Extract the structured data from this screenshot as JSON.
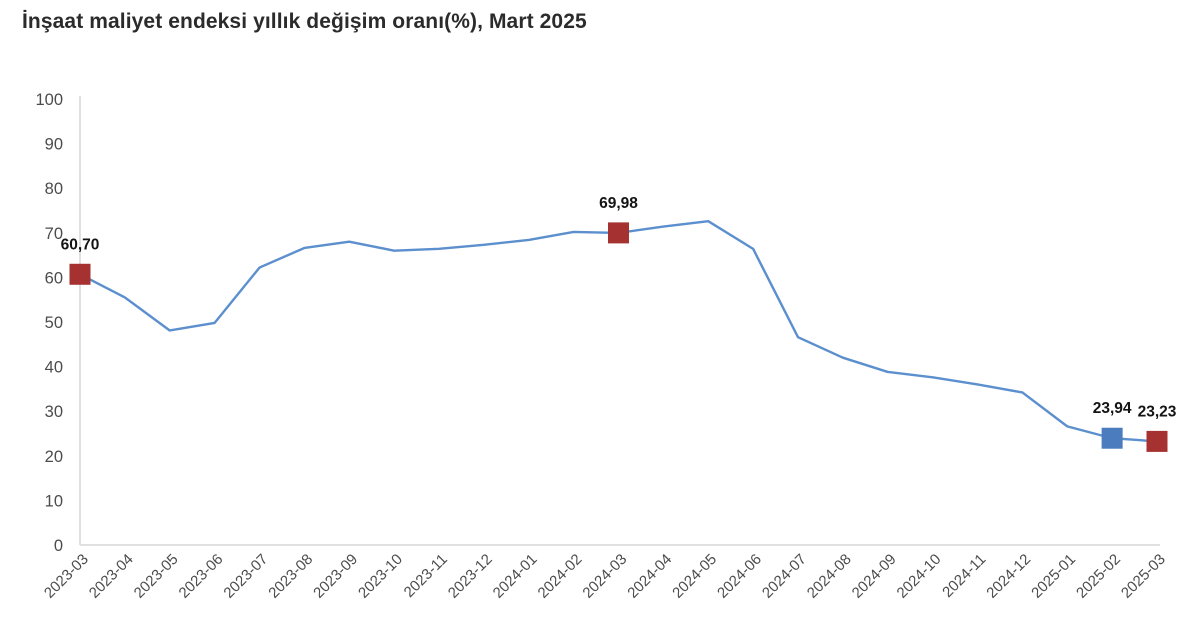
{
  "title": "İnşaat maliyet endeksi yıllık değişim oranı(%), Mart 2025",
  "colors": {
    "line": "#5b8fce",
    "marker_red": "#a53130",
    "marker_blue": "#4b7cbe",
    "title_text": "#2b2b2b",
    "axis_text": "#4c4c4c",
    "axis_line": "#d6d6d6",
    "point_label_text": "#141414"
  },
  "chart_data": {
    "type": "line",
    "title": "İnşaat maliyet endeksi yıllık değişim oranı(%), Mart 2025",
    "xlabel": "",
    "ylabel": "",
    "ylim": [
      0,
      100
    ],
    "ytick_step": 10,
    "grid": false,
    "legend": null,
    "x": [
      "2023-03",
      "2023-04",
      "2023-05",
      "2023-06",
      "2023-07",
      "2023-08",
      "2023-09",
      "2023-10",
      "2023-11",
      "2023-12",
      "2024-01",
      "2024-02",
      "2024-03",
      "2024-04",
      "2024-05",
      "2024-06",
      "2024-07",
      "2024-08",
      "2024-09",
      "2024-10",
      "2024-11",
      "2024-12",
      "2025-01",
      "2025-02",
      "2025-03"
    ],
    "values": [
      60.7,
      55.5,
      48.1,
      49.8,
      62.2,
      66.6,
      68.0,
      66.0,
      66.4,
      67.3,
      68.4,
      70.2,
      69.98,
      71.4,
      72.6,
      66.4,
      46.6,
      42.0,
      38.8,
      37.6,
      36.0,
      34.2,
      26.6,
      23.94,
      23.23
    ],
    "highlighted_points": [
      {
        "x": "2023-03",
        "value": 60.7,
        "label": "60,70",
        "marker_color": "red"
      },
      {
        "x": "2024-03",
        "value": 69.98,
        "label": "69,98",
        "marker_color": "red"
      },
      {
        "x": "2025-02",
        "value": 23.94,
        "label": "23,94",
        "marker_color": "blue"
      },
      {
        "x": "2025-03",
        "value": 23.23,
        "label": "23,23",
        "marker_color": "red"
      }
    ]
  }
}
